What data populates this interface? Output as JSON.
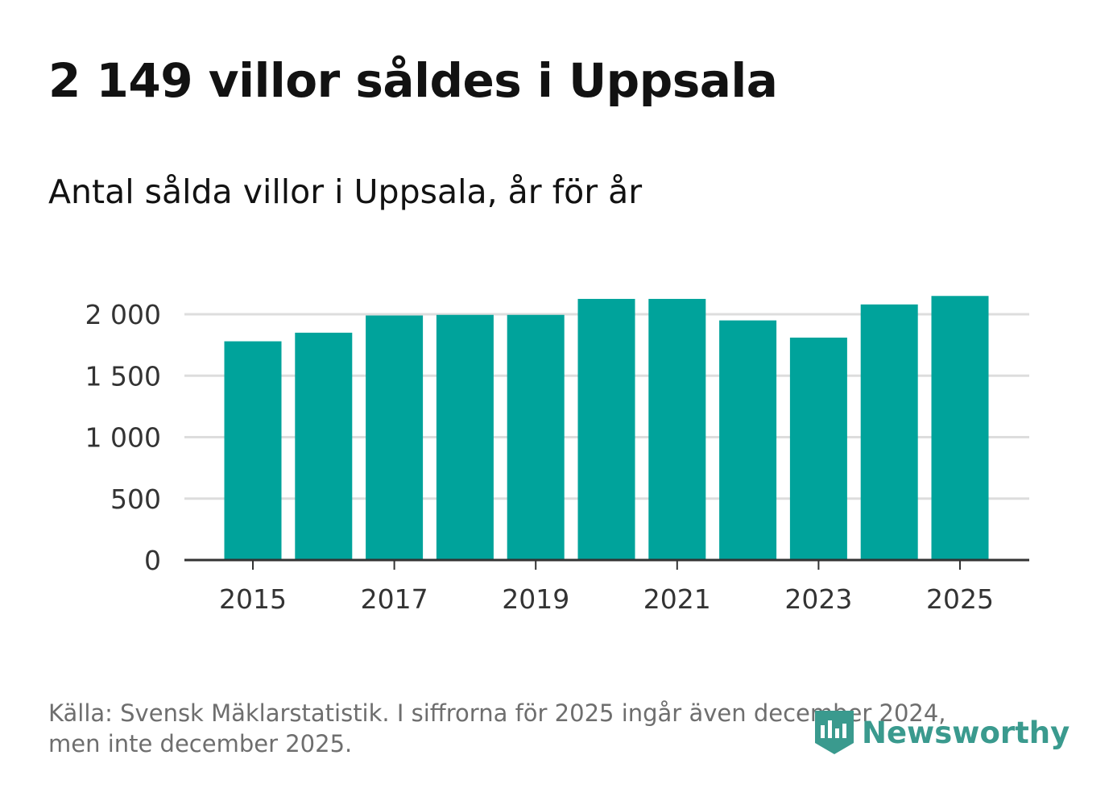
{
  "header": {
    "title": "2 149 villor såldes i Uppsala",
    "subtitle": "Antal sålda villor i Uppsala, år för år"
  },
  "footer": {
    "source_line1": "Källa: Svensk Mäklarstatistik. I siffrorna för 2025 ingår även december 2024,",
    "source_line2": "men inte december 2025."
  },
  "brand": {
    "name": "Newsworthy",
    "color": "#3a9a8e",
    "icon": "newsworthy-logo-icon"
  },
  "colors": {
    "bar": "#00a39b",
    "grid": "#dddddd",
    "axis": "#333333",
    "tick_text": "#333333"
  },
  "chart_data": {
    "type": "bar",
    "title": "Antal sålda villor i Uppsala, år för år",
    "xlabel": "",
    "ylabel": "",
    "categories": [
      "2015",
      "2016",
      "2017",
      "2018",
      "2019",
      "2020",
      "2021",
      "2022",
      "2023",
      "2024",
      "2025"
    ],
    "values": [
      1780,
      1850,
      1990,
      1995,
      1995,
      2125,
      2125,
      1950,
      1810,
      2080,
      2149
    ],
    "ylim": [
      0,
      2200
    ],
    "yticks": [
      0,
      500,
      1000,
      1500,
      2000
    ],
    "ytick_labels": [
      "0",
      "500",
      "1 000",
      "1 500",
      "2 000"
    ],
    "xtick_labels": [
      "2015",
      "2017",
      "2019",
      "2021",
      "2023",
      "2025"
    ],
    "grid": true
  }
}
